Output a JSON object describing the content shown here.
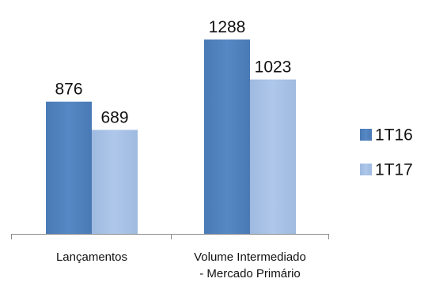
{
  "chart_data": {
    "type": "bar",
    "categories": [
      [
        "Lançamentos"
      ],
      [
        "Volume Intermediado",
        "- Mercado Primário"
      ]
    ],
    "series": [
      {
        "name": "1T16",
        "values": [
          876,
          1288
        ]
      },
      {
        "name": "1T17",
        "values": [
          689,
          1023
        ]
      }
    ],
    "ylim": [
      0,
      1400
    ],
    "grid": false,
    "legend_position": "right",
    "colors": {
      "1T16": "#4f81bd",
      "1T17": "#a6c0e4",
      "axis": "#8c8c8c"
    }
  }
}
